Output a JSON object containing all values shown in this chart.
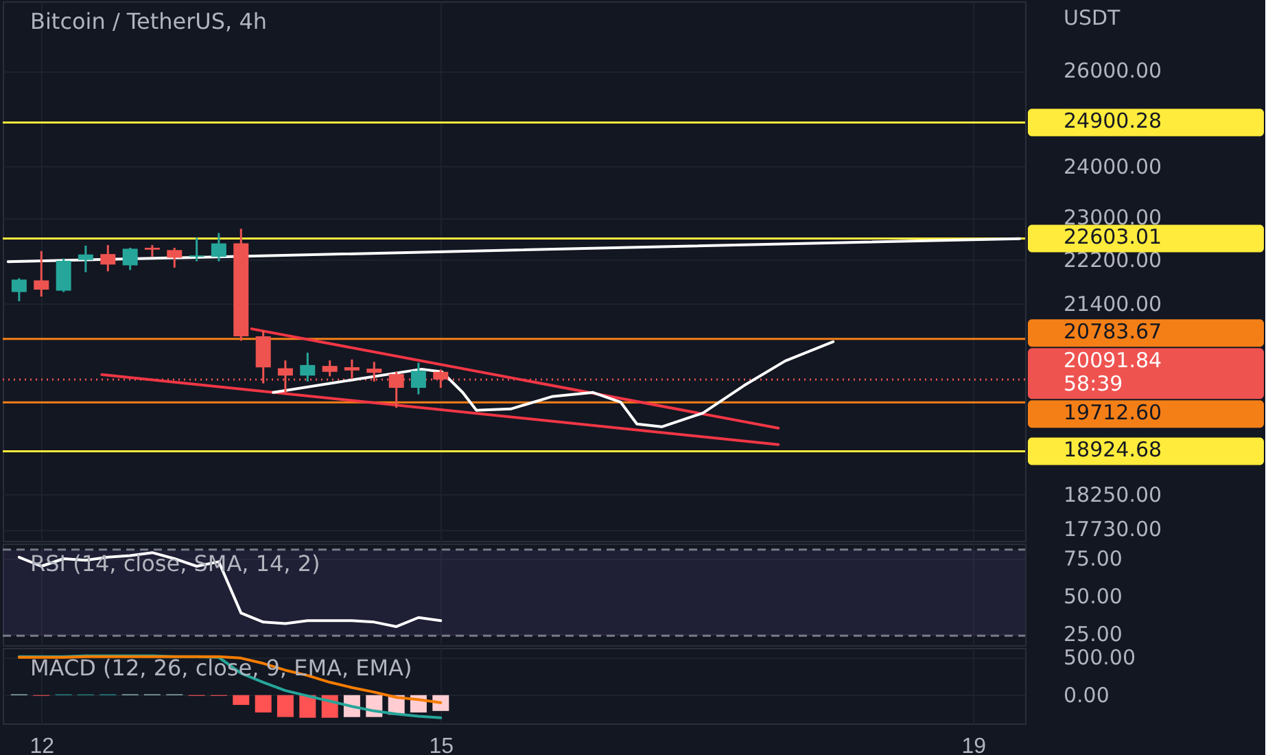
{
  "chart_data": [
    {
      "type": "candlestick",
      "title": "Bitcoin / TetherUS, 4h",
      "ylabel": "USDT",
      "log": true,
      "grid": true,
      "tick_labels": "y",
      "x": [
        11.833,
        12,
        12.167,
        12.333,
        12.5,
        12.667,
        12.833,
        13,
        13.167,
        13.333,
        13.5,
        13.667,
        13.833,
        14,
        14.167,
        14.333,
        14.5,
        14.667,
        14.833,
        15
      ],
      "ohlc": [
        [
          21614,
          21865,
          21449,
          21840
        ],
        [
          21825,
          22367,
          21532,
          21657
        ],
        [
          21640,
          22227,
          21614,
          22184
        ],
        [
          22202,
          22468,
          21976,
          22302
        ],
        [
          22310,
          22478,
          21991,
          22116
        ],
        [
          22101,
          22428,
          22016,
          22410
        ],
        [
          22428,
          22478,
          22259,
          22392
        ],
        [
          22385,
          22428,
          22059,
          22242
        ],
        [
          22259,
          22618,
          22177,
          22285
        ],
        [
          22259,
          22704,
          22177,
          22510
        ],
        [
          22510,
          22786,
          20753,
          20831
        ],
        [
          20831,
          20927,
          20027,
          20297
        ],
        [
          20282,
          20414,
          19867,
          20158
        ],
        [
          20158,
          20547,
          20059,
          20337
        ],
        [
          20321,
          20414,
          20145,
          20221
        ],
        [
          20298,
          20430,
          20100,
          20244
        ],
        [
          20275,
          20390,
          20059,
          20205
        ],
        [
          20183,
          20221,
          19622,
          19953
        ],
        [
          19953,
          20376,
          19845,
          20238
        ],
        [
          20221,
          20260,
          19953,
          20091.84
        ]
      ],
      "colors": [
        "#26a69a",
        "#ef5350",
        "#26a69a",
        "#26a69a",
        "#ef5350",
        "#26a69a",
        "#ef5350",
        "#ef5350",
        "#26a69a",
        "#26a69a",
        "#ef5350",
        "#ef5350",
        "#ef5350",
        "#26a69a",
        "#ef5350",
        "#ef5350",
        "#ef5350",
        "#ef5350",
        "#26a69a",
        "#ef5350"
      ],
      "series": [
        {
          "type": "line",
          "color": "#ffffff",
          "x": [
            11.75,
            19.35
          ],
          "values": [
            22170,
            22600
          ]
        },
        {
          "type": "line",
          "color": "#f23645",
          "x": [
            13.58,
            17.536
          ],
          "values": [
            20960,
            19292
          ]
        },
        {
          "type": "line",
          "color": "#f23645",
          "x": [
            12.454,
            17.536
          ],
          "values": [
            20174,
            19030
          ]
        },
        {
          "type": "line",
          "color": "#ffffff",
          "x": [
            13.742,
            14.392,
            14.856,
            15.01,
            15.165,
            15.268,
            15.526,
            15.835,
            16.144,
            16.351,
            16.474,
            16.66,
            16.969,
            17.278,
            17.588,
            17.948
          ],
          "values": [
            19876,
            20105,
            20266,
            20220,
            19876,
            19582,
            19604,
            19807,
            19876,
            19717,
            19359,
            19314,
            19537,
            19990,
            20406,
            20736
          ]
        }
      ],
      "xlim": [
        11.71,
        19.39
      ],
      "xticks": [
        12,
        15,
        19
      ],
      "ylim": [
        17560,
        27550
      ],
      "yticks": [
        {
          "value": 26000,
          "label": "26000.00"
        },
        {
          "value": 24000,
          "label": "24000.00"
        },
        {
          "value": 23000,
          "label": "23000.00"
        },
        {
          "value": 22200,
          "label": "22200.00"
        },
        {
          "value": 21400,
          "label": "21400.00"
        },
        {
          "value": 18250,
          "label": "18250.00"
        },
        {
          "value": 17730,
          "label": "17730.00"
        }
      ],
      "ref_lines": [
        {
          "axis": "y",
          "value": 24900.28,
          "label": "24900.28",
          "color": "#ffeb3b"
        },
        {
          "axis": "y",
          "value": 22603.01,
          "label": "22603.01",
          "color": "#ffeb3b"
        },
        {
          "axis": "y",
          "value": 20783.67,
          "label": "20783.67",
          "color": "#f57f17"
        },
        {
          "axis": "y",
          "value": 20091.84,
          "label": "20091.84\n58:39",
          "color": "#ef5350",
          "line_style": "dotted"
        },
        {
          "axis": "y",
          "value": 19712.6,
          "label": "19712.60",
          "color": "#f57f17"
        },
        {
          "axis": "y",
          "value": 18924.68,
          "label": "18924.68",
          "color": "#ffeb3b"
        }
      ]
    },
    {
      "type": "line",
      "title": "RSI (14, close, SMA, 14, 2)",
      "grid": true,
      "tick_labels": "y",
      "x": [
        11.833,
        12,
        12.167,
        12.333,
        12.5,
        12.667,
        12.833,
        13,
        13.167,
        13.333,
        13.5,
        13.667,
        13.833,
        14,
        14.167,
        14.333,
        14.5,
        14.667,
        14.833,
        15
      ],
      "series": [
        {
          "color": "#ffffff",
          "values": [
            76,
            70,
            75,
            74,
            76,
            77,
            79,
            75,
            70,
            73,
            39,
            33,
            32,
            34,
            34,
            34,
            33,
            30,
            36,
            34
          ]
        }
      ],
      "xlim": [
        11.71,
        19.39
      ],
      "xticks": [
        12,
        15,
        19
      ],
      "ylim": [
        17.7,
        85
      ],
      "yticks": [
        {
          "value": 75,
          "label": "75.00"
        },
        {
          "value": 50,
          "label": "50.00"
        },
        {
          "value": 25,
          "label": "25.00"
        }
      ],
      "bands": [
        {
          "axis": "y",
          "from": 24,
          "to": 81,
          "color": "#7e57c2"
        }
      ],
      "ref_lines": [
        {
          "axis": "y",
          "value": 81,
          "color": "#787b86",
          "line_style": "dashed"
        },
        {
          "axis": "y",
          "value": 24,
          "color": "#787b86",
          "line_style": "dashed"
        }
      ]
    },
    {
      "type": "bar",
      "title": "MACD (12, 26, close, 9, EMA, EMA)",
      "grid": true,
      "x": [
        11.833,
        12,
        12.167,
        12.333,
        12.5,
        12.667,
        12.833,
        13,
        13.167,
        13.333,
        13.5,
        13.667,
        13.833,
        14,
        14.167,
        14.333,
        14.5,
        14.667,
        14.833,
        15
      ],
      "series": [
        {
          "type": "bar",
          "colors": [
            "#b2dfdb",
            "#ff5252",
            "#26a69a",
            "#26a69a",
            "#26a69a",
            "#b2dfdb",
            "#b2dfdb",
            "#b2dfdb",
            "#ff5252",
            "#ff5252",
            "#ff5252",
            "#ff5252",
            "#ff5252",
            "#ff5252",
            "#ff5252",
            "#ffcdd2",
            "#ffcdd2",
            "#ffcdd2",
            "#ffcdd2",
            "#ffcdd2"
          ],
          "values": [
            10,
            -10,
            10,
            10,
            10,
            10,
            10,
            10,
            -10,
            -10,
            -130,
            -230,
            -290,
            -300,
            -300,
            -290,
            -290,
            -260,
            -230,
            -210
          ]
        },
        {
          "type": "line",
          "color": "#26a69a",
          "values": [
            510,
            510,
            510,
            520,
            520,
            520,
            520,
            510,
            510,
            500,
            290,
            170,
            60,
            -10,
            -80,
            -150,
            -210,
            -250,
            -280,
            -300
          ]
        },
        {
          "type": "line",
          "color": "#f57c00",
          "values": [
            500,
            500,
            500,
            510,
            510,
            510,
            510,
            510,
            510,
            510,
            490,
            420,
            330,
            260,
            170,
            100,
            40,
            -30,
            -60,
            -100
          ]
        }
      ],
      "xlim": [
        11.71,
        19.39
      ],
      "xticks": [
        12,
        15,
        19
      ],
      "ylim": [
        -375,
        625
      ],
      "yticks": [
        {
          "value": 500,
          "label": "500.00"
        },
        {
          "value": 0,
          "label": "0.00"
        }
      ]
    }
  ]
}
